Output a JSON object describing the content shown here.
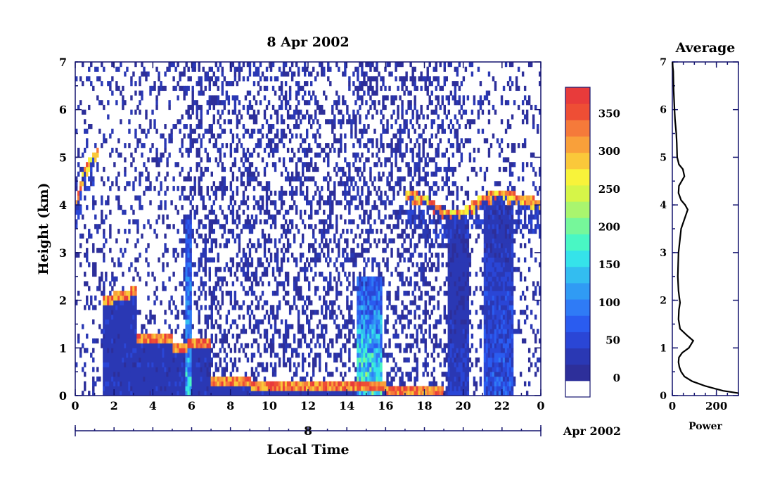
{
  "chart_data": [
    {
      "type": "heatmap",
      "title": "8 Apr 2002",
      "xlabel": "Local Time",
      "ylabel": "Height (km)",
      "xlim": [
        0,
        24
      ],
      "ylim": [
        0,
        7
      ],
      "x_ticks": [
        "0",
        "2",
        "4",
        "6",
        "8",
        "10",
        "12",
        "14",
        "16",
        "18",
        "20",
        "22",
        "0"
      ],
      "y_ticks": [
        "0",
        "1",
        "2",
        "3",
        "4",
        "5",
        "6",
        "7"
      ],
      "day_axis": {
        "day_label": "8",
        "month_label": "Apr 2002"
      },
      "colorbar": {
        "ticks": [
          "0",
          "50",
          "100",
          "150",
          "200",
          "250",
          "300",
          "350"
        ],
        "tick_values": [
          0,
          50,
          100,
          150,
          200,
          250,
          300,
          350
        ],
        "range": [
          -25,
          385
        ],
        "colors": [
          "#ffffff",
          "#2d2f9a",
          "#2a38b4",
          "#2a46d6",
          "#2a5cf0",
          "#2f7bf6",
          "#309bf4",
          "#33bdf0",
          "#35e3ea",
          "#49f7c4",
          "#76f79a",
          "#a9f56e",
          "#d6f548",
          "#f8f33a",
          "#fac83a",
          "#f9a03a",
          "#f57a3a",
          "#ee4e35",
          "#e83b3b"
        ]
      },
      "features": {
        "cloud_top_layer_km": [
          {
            "t": 0.0,
            "h": 3.9
          },
          {
            "t": 0.4,
            "h": 4.6
          },
          {
            "t": 0.8,
            "h": 4.9
          },
          {
            "t": 1.2,
            "h": 5.1
          },
          {
            "t": 17.0,
            "h": 4.2
          },
          {
            "t": 18.0,
            "h": 4.1
          },
          {
            "t": 19.0,
            "h": 3.8
          },
          {
            "t": 20.0,
            "h": 3.8
          },
          {
            "t": 21.0,
            "h": 4.1
          },
          {
            "t": 22.0,
            "h": 4.2
          },
          {
            "t": 23.0,
            "h": 4.1
          },
          {
            "t": 24.0,
            "h": 4.0
          }
        ],
        "boundary_layer_km": [
          {
            "t": 1.4,
            "h": 2.0
          },
          {
            "t": 2.0,
            "h": 2.1
          },
          {
            "t": 2.8,
            "h": 2.2
          },
          {
            "t": 3.2,
            "h": 1.2
          },
          {
            "t": 4.5,
            "h": 1.2
          },
          {
            "t": 5.0,
            "h": 1.0
          },
          {
            "t": 5.8,
            "h": 1.1
          },
          {
            "t": 6.5,
            "h": 1.1
          },
          {
            "t": 7.0,
            "h": 0.3
          },
          {
            "t": 9.0,
            "h": 0.2
          },
          {
            "t": 11.0,
            "h": 0.2
          },
          {
            "t": 13.0,
            "h": 0.2
          },
          {
            "t": 14.0,
            "h": 0.2
          },
          {
            "t": 16.0,
            "h": 0.1
          },
          {
            "t": 19.0,
            "h": 0.1
          }
        ],
        "convective_cells": [
          {
            "t0": 14.5,
            "t1": 15.8,
            "top_km": 2.5,
            "peak_power": 250
          },
          {
            "t0": 5.7,
            "t1": 6.0,
            "top_km": 3.8,
            "peak_power": 200
          },
          {
            "t0": 21.1,
            "t1": 22.6,
            "top_km": 4.0,
            "peak_power": 100
          },
          {
            "t0": 19.2,
            "t1": 20.3,
            "top_km": 3.7,
            "peak_power": 60
          }
        ]
      }
    },
    {
      "type": "line",
      "title": "Average",
      "xlabel": "Power",
      "ylabel": "",
      "xlim": [
        0,
        300
      ],
      "ylim": [
        0,
        7
      ],
      "x_ticks": [
        "0",
        "200"
      ],
      "y_ticks": [
        "0",
        "1",
        "2",
        "3",
        "4",
        "5",
        "6",
        "7"
      ],
      "series": [
        {
          "x": [
            300,
            230,
            150,
            90,
            55,
            40,
            32,
            28,
            30,
            45,
            75,
            95,
            70,
            35,
            28,
            30,
            35,
            32,
            28,
            25,
            28,
            40,
            70,
            58,
            40,
            28,
            30,
            55,
            48,
            30,
            22,
            20,
            18,
            12,
            10,
            8,
            6,
            5,
            4,
            2,
            1
          ],
          "y": [
            0.05,
            0.1,
            0.2,
            0.3,
            0.4,
            0.5,
            0.6,
            0.7,
            0.8,
            0.9,
            1.0,
            1.15,
            1.25,
            1.4,
            1.6,
            1.8,
            1.95,
            2.05,
            2.2,
            2.5,
            3.0,
            3.5,
            3.9,
            4.0,
            4.1,
            4.25,
            4.4,
            4.6,
            4.75,
            4.85,
            5.0,
            5.3,
            5.5,
            5.8,
            6.0,
            6.2,
            6.4,
            6.6,
            6.8,
            6.9,
            7.0
          ]
        }
      ]
    }
  ]
}
